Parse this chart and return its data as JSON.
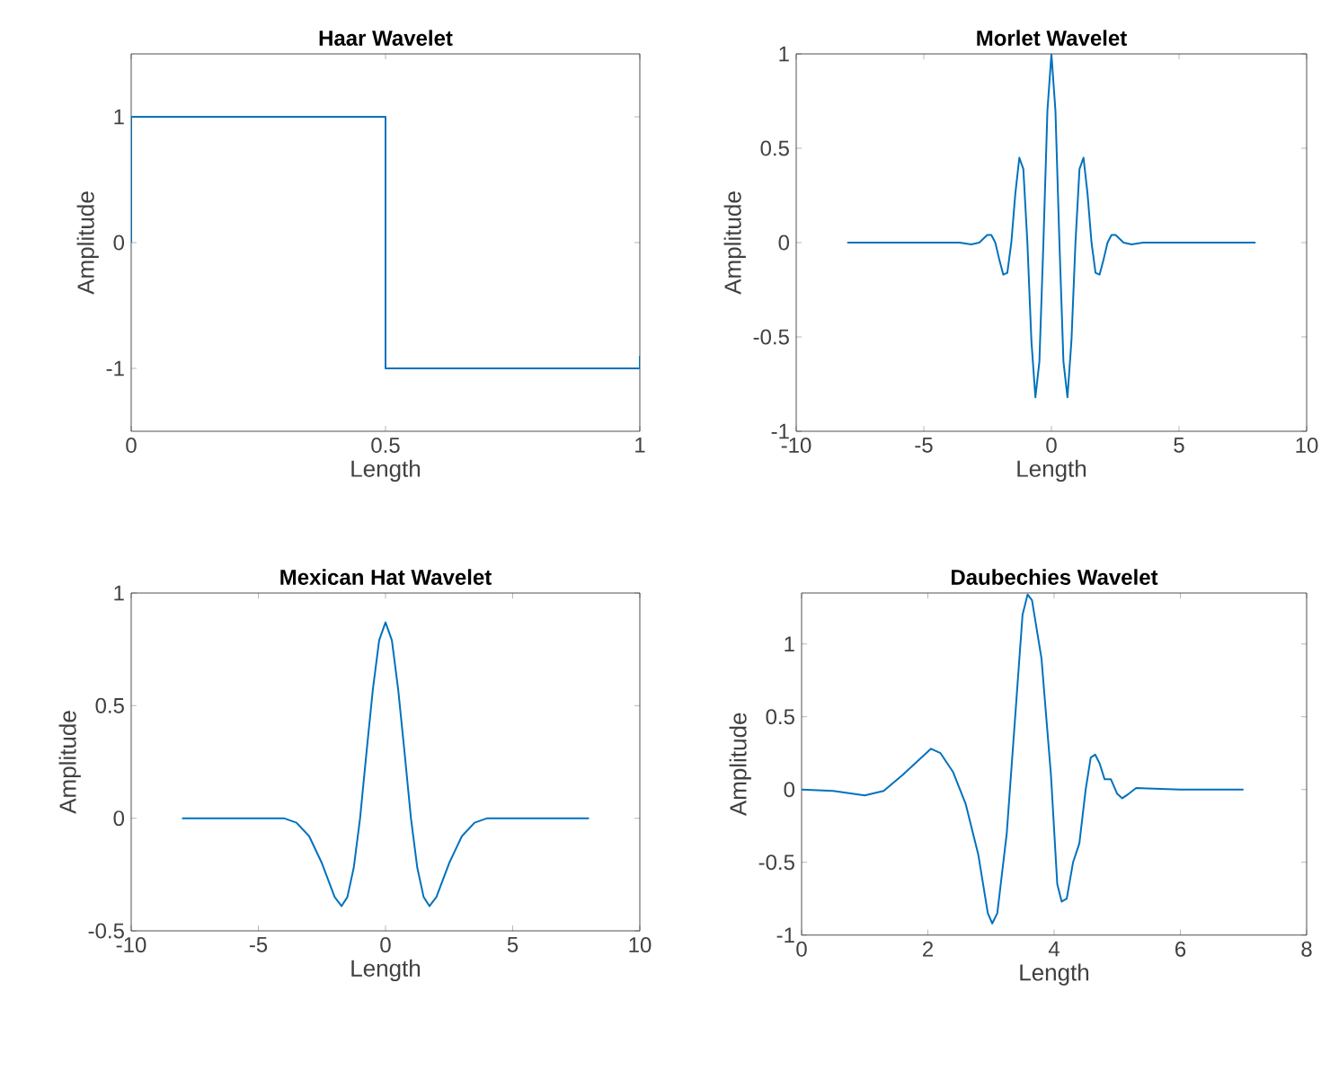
{
  "chart_data": [
    {
      "type": "line",
      "title": "Haar Wavelet",
      "xlabel": "Length",
      "ylabel": "Amplitude",
      "xlim": [
        0,
        1
      ],
      "ylim": [
        -1.5,
        1.5
      ],
      "xticks": [
        0,
        0.5,
        1
      ],
      "yticks": [
        -1,
        0,
        1
      ],
      "x": [
        0,
        0,
        0.5,
        0.5,
        1,
        1
      ],
      "series": [
        {
          "color": "#0072bd",
          "values": [
            0,
            1,
            1,
            -1,
            -1,
            -0.9
          ]
        }
      ]
    },
    {
      "type": "line",
      "title": "Morlet Wavelet",
      "xlabel": "Length",
      "ylabel": "Amplitude",
      "xlim": [
        -10,
        10
      ],
      "ylim": [
        -1,
        1
      ],
      "xticks": [
        -10,
        -5,
        0,
        5,
        10
      ],
      "yticks": [
        -1,
        -0.5,
        0,
        0.5,
        1
      ],
      "x": [
        -8,
        -3.6,
        -3.14,
        -2.827,
        -2.67,
        -2.513,
        -2.356,
        -2.199,
        -2.042,
        -1.885,
        -1.728,
        -1.571,
        -1.414,
        -1.257,
        -1.1,
        -0.942,
        -0.785,
        -0.628,
        -0.471,
        -0.314,
        -0.157,
        0,
        0.157,
        0.314,
        0.471,
        0.628,
        0.785,
        0.942,
        1.1,
        1.257,
        1.414,
        1.571,
        1.728,
        1.885,
        2.042,
        2.199,
        2.356,
        2.513,
        2.67,
        2.827,
        3.14,
        3.6,
        8
      ],
      "series": [
        {
          "color": "#0072bd",
          "values": [
            0,
            0,
            -0.01,
            0,
            0.02,
            0.04,
            0.04,
            0,
            -0.09,
            -0.17,
            -0.16,
            0,
            0.26,
            0.45,
            0.39,
            0,
            -0.52,
            -0.82,
            -0.63,
            0,
            0.7,
            1,
            0.7,
            0,
            -0.63,
            -0.82,
            -0.52,
            0,
            0.39,
            0.45,
            0.26,
            0,
            -0.16,
            -0.17,
            -0.09,
            0,
            0.04,
            0.04,
            0.02,
            0,
            -0.01,
            0,
            0
          ]
        }
      ]
    },
    {
      "type": "line",
      "title": "Mexican Hat Wavelet",
      "xlabel": "Length",
      "ylabel": "Amplitude",
      "xlim": [
        -10,
        10
      ],
      "ylim": [
        -0.5,
        1
      ],
      "xticks": [
        -10,
        -5,
        0,
        5,
        10
      ],
      "yticks": [
        -0.5,
        0,
        0.5,
        1
      ],
      "x": [
        -8,
        -5,
        -4,
        -3.5,
        -3,
        -2.5,
        -2,
        -1.73,
        -1.5,
        -1.25,
        -1,
        -0.75,
        -0.5,
        -0.25,
        0,
        0.25,
        0.5,
        0.75,
        1,
        1.25,
        1.5,
        1.73,
        2,
        2.5,
        3,
        3.5,
        4,
        5,
        8
      ],
      "series": [
        {
          "color": "#0072bd",
          "values": [
            0,
            0,
            0,
            -0.02,
            -0.08,
            -0.2,
            -0.35,
            -0.39,
            -0.35,
            -0.22,
            0,
            0.29,
            0.57,
            0.79,
            0.87,
            0.79,
            0.57,
            0.29,
            0,
            -0.22,
            -0.35,
            -0.39,
            -0.35,
            -0.2,
            -0.08,
            -0.02,
            0,
            0,
            0
          ]
        }
      ]
    },
    {
      "type": "line",
      "title": "Daubechies  Wavelet",
      "xlabel": "Length",
      "ylabel": "Amplitude",
      "xlim": [
        0,
        8
      ],
      "ylim": [
        -1,
        1.35
      ],
      "xticks": [
        0,
        2,
        4,
        6,
        8
      ],
      "yticks": [
        -1,
        -0.5,
        0,
        0.5,
        1
      ],
      "x": [
        0,
        0.5,
        1.0,
        1.3,
        1.6,
        1.85,
        2.05,
        2.2,
        2.4,
        2.6,
        2.8,
        2.95,
        3.02,
        3.1,
        3.25,
        3.4,
        3.5,
        3.58,
        3.65,
        3.8,
        3.95,
        4.05,
        4.12,
        4.2,
        4.3,
        4.4,
        4.5,
        4.58,
        4.65,
        4.72,
        4.8,
        4.9,
        5.0,
        5.08,
        5.18,
        5.3,
        6,
        7
      ],
      "series": [
        {
          "color": "#0072bd",
          "values": [
            0,
            -0.01,
            -0.04,
            -0.01,
            0.1,
            0.2,
            0.28,
            0.25,
            0.12,
            -0.1,
            -0.45,
            -0.85,
            -0.92,
            -0.85,
            -0.3,
            0.6,
            1.2,
            1.34,
            1.3,
            0.9,
            0.1,
            -0.65,
            -0.77,
            -0.75,
            -0.5,
            -0.37,
            0,
            0.22,
            0.24,
            0.18,
            0.07,
            0.07,
            -0.03,
            -0.06,
            -0.03,
            0.01,
            0,
            0
          ]
        }
      ]
    }
  ]
}
